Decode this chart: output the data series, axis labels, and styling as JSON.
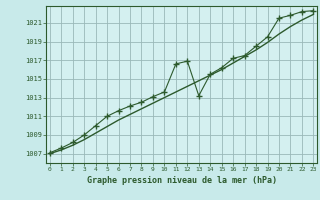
{
  "title": "Graphe pression niveau de la mer (hPa)",
  "background_color": "#c8eaea",
  "plot_bg_color": "#d4f0f0",
  "grid_color": "#9ab8b8",
  "line_color": "#2d5a2d",
  "x_hours": [
    0,
    1,
    2,
    3,
    4,
    5,
    6,
    7,
    8,
    9,
    10,
    11,
    12,
    13,
    14,
    15,
    16,
    17,
    18,
    19,
    20,
    21,
    22,
    23
  ],
  "pressure_main": [
    1007.1,
    1007.6,
    1008.2,
    1009.0,
    1010.0,
    1011.0,
    1011.6,
    1012.1,
    1012.5,
    1013.1,
    1013.6,
    1016.6,
    1016.9,
    1013.2,
    1015.5,
    1016.2,
    1017.2,
    1017.5,
    1018.5,
    1019.5,
    1021.5,
    1021.8,
    1022.2,
    1022.3
  ],
  "pressure_smooth": [
    1007.0,
    1007.4,
    1007.9,
    1008.5,
    1009.2,
    1009.9,
    1010.6,
    1011.2,
    1011.8,
    1012.4,
    1013.0,
    1013.6,
    1014.2,
    1014.8,
    1015.4,
    1016.0,
    1016.7,
    1017.4,
    1018.1,
    1018.9,
    1019.8,
    1020.6,
    1021.3,
    1021.9
  ],
  "ylim": [
    1006.0,
    1022.8
  ],
  "yticks": [
    1007,
    1009,
    1011,
    1013,
    1015,
    1017,
    1019,
    1021
  ],
  "xlim": [
    -0.3,
    23.3
  ],
  "xticks": [
    0,
    1,
    2,
    3,
    4,
    5,
    6,
    7,
    8,
    9,
    10,
    11,
    12,
    13,
    14,
    15,
    16,
    17,
    18,
    19,
    20,
    21,
    22,
    23
  ],
  "spine_color": "#2d5a2d",
  "tick_label_color": "#2d5a2d",
  "title_color": "#2d5a2d"
}
